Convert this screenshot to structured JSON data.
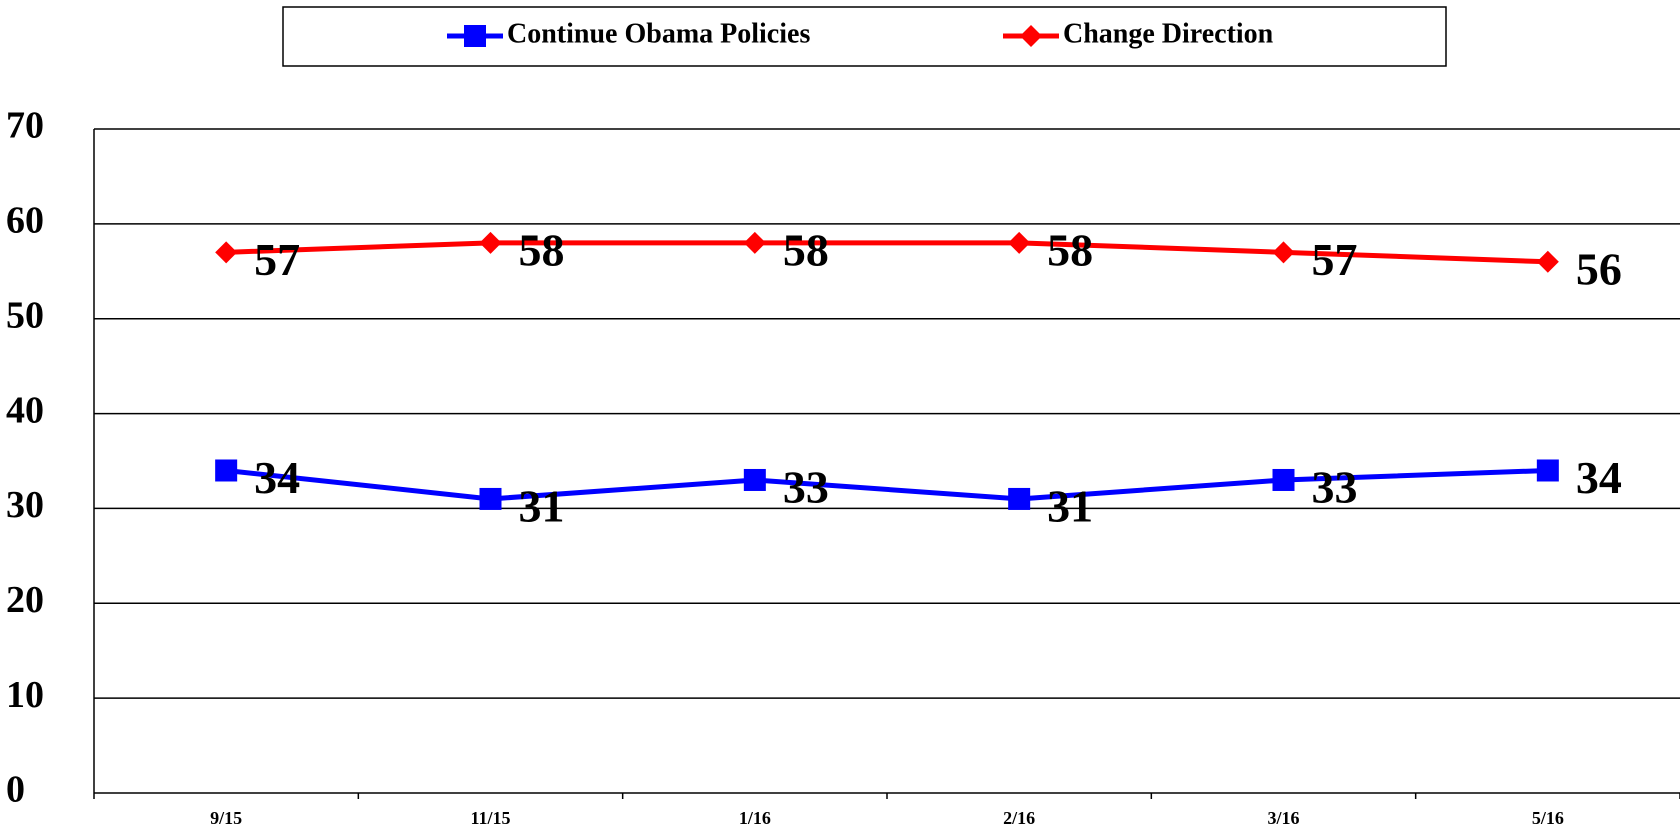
{
  "chart_data": {
    "type": "line",
    "categories": [
      "9/15",
      "11/15",
      "1/16",
      "2/16",
      "3/16",
      "5/16"
    ],
    "series": [
      {
        "name": "Continue Obama Policies",
        "color": "#0000ff",
        "marker": "square",
        "values": [
          34,
          31,
          33,
          31,
          33,
          34
        ]
      },
      {
        "name": "Change Direction",
        "color": "#ff0000",
        "marker": "diamond",
        "values": [
          57,
          58,
          58,
          58,
          57,
          56
        ]
      }
    ],
    "ylim": [
      0,
      70
    ],
    "yticks": [
      0,
      10,
      20,
      30,
      40,
      50,
      60,
      70
    ],
    "grid": true,
    "legend": "top"
  }
}
